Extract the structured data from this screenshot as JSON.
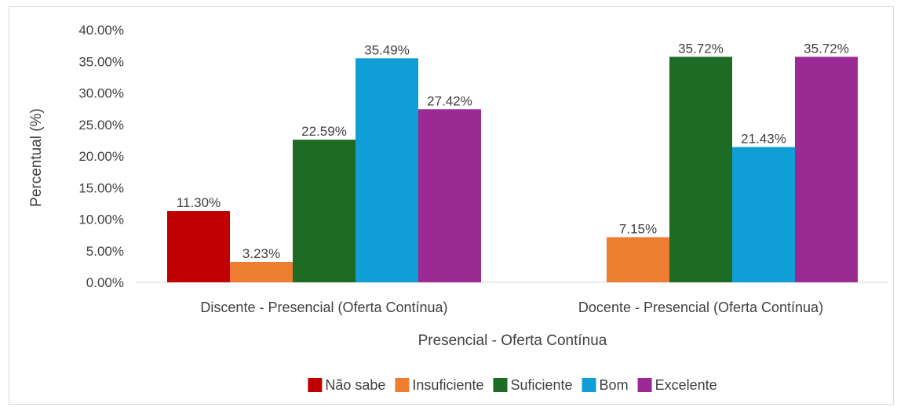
{
  "chart_data": {
    "type": "bar",
    "title": "",
    "xlabel": "Presencial - Oferta Contínua",
    "ylabel": "Percentual (%)",
    "ylim": [
      0,
      40
    ],
    "yticks": [
      "0.00%",
      "5.00%",
      "10.00%",
      "15.00%",
      "20.00%",
      "25.00%",
      "30.00%",
      "35.00%",
      "40.00%"
    ],
    "categories": [
      "Discente - Presencial (Oferta Contínua)",
      "Docente - Presencial (Oferta Contínua)"
    ],
    "series": [
      {
        "name": "Não sabe",
        "color": "#c00000",
        "values": [
          11.3,
          null
        ],
        "labels": [
          "11.30%",
          ""
        ]
      },
      {
        "name": "Insuficiente",
        "color": "#ed7d31",
        "values": [
          3.23,
          7.15
        ],
        "labels": [
          "3.23%",
          "7.15%"
        ]
      },
      {
        "name": "Suficiente",
        "color": "#1e6b26",
        "values": [
          22.59,
          35.72
        ],
        "labels": [
          "22.59%",
          "35.72%"
        ]
      },
      {
        "name": "Bom",
        "color": "#0f9ed5",
        "values": [
          35.49,
          21.43
        ],
        "labels": [
          "35.49%",
          "21.43%"
        ]
      },
      {
        "name": "Excelente",
        "color": "#9c2a94",
        "values": [
          27.42,
          35.72
        ],
        "labels": [
          "27.42%",
          "35.72%"
        ]
      }
    ],
    "legend": {
      "position": "bottom"
    },
    "grid": false
  }
}
